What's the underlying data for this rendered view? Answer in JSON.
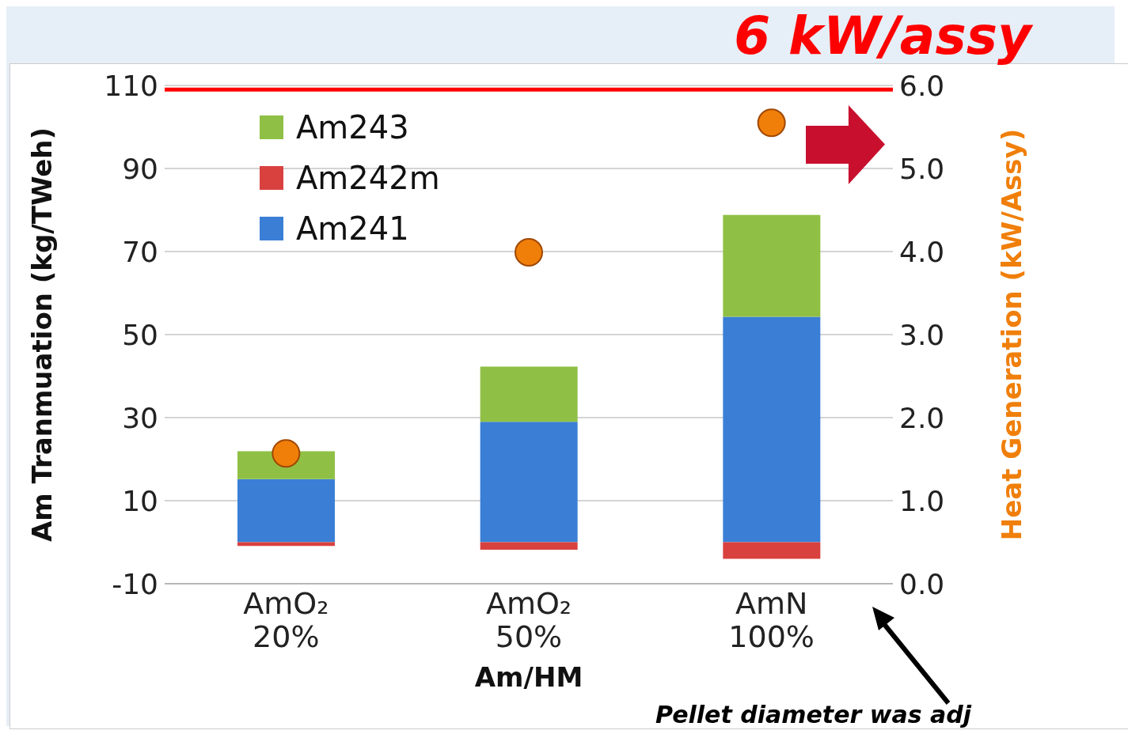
{
  "chart_data": {
    "type": "bar",
    "stacked": true,
    "xlabel": "Am/HM",
    "ylabel": "Am Tranmuation (kg/TWeh)",
    "y2label": "Heat Generation (kW/Assy)",
    "categories": [
      "AmO₂ 20%",
      "AmO₂ 50%",
      "AmN 100%"
    ],
    "series": [
      {
        "name": "Am241",
        "color": "#3a7fd5",
        "values": [
          15.2,
          29.0,
          54.3
        ]
      },
      {
        "name": "Am242m",
        "color": "#d9413f",
        "values": [
          -0.9,
          -1.8,
          -4.0
        ]
      },
      {
        "name": "Am243",
        "color": "#8fc045",
        "values": [
          6.7,
          13.3,
          24.5
        ]
      },
      {
        "type": "scatter",
        "axis": "y2",
        "color": "#f07f0a",
        "x": [
          "AmO₂ 20%",
          "AmO₂ 50%",
          "AmN 100%"
        ],
        "values": [
          1.57,
          3.99,
          5.55
        ]
      }
    ],
    "ylim": [
      -10,
      110
    ],
    "yticks": [
      -10,
      10,
      30,
      50,
      70,
      90,
      110
    ],
    "y2lim": [
      0,
      6
    ],
    "y2ticks": [
      {
        "value": 0,
        "label": "0.0"
      },
      {
        "value": 1,
        "label": "1.0"
      },
      {
        "value": 2,
        "label": "2.0"
      },
      {
        "value": 3,
        "label": "3.0"
      },
      {
        "value": 4,
        "label": "4.0"
      },
      {
        "value": 5,
        "label": "5.0"
      },
      {
        "value": 6,
        "label": "6.0"
      }
    ],
    "ref_lines": [
      {
        "axis": "y2",
        "value": 5.95,
        "label": "6 kW/assy",
        "color": "#ff0000"
      }
    ],
    "annotations": [
      "Pellet diameter was adj"
    ],
    "grid": "y",
    "legend": "top left",
    "marker": "circle"
  }
}
